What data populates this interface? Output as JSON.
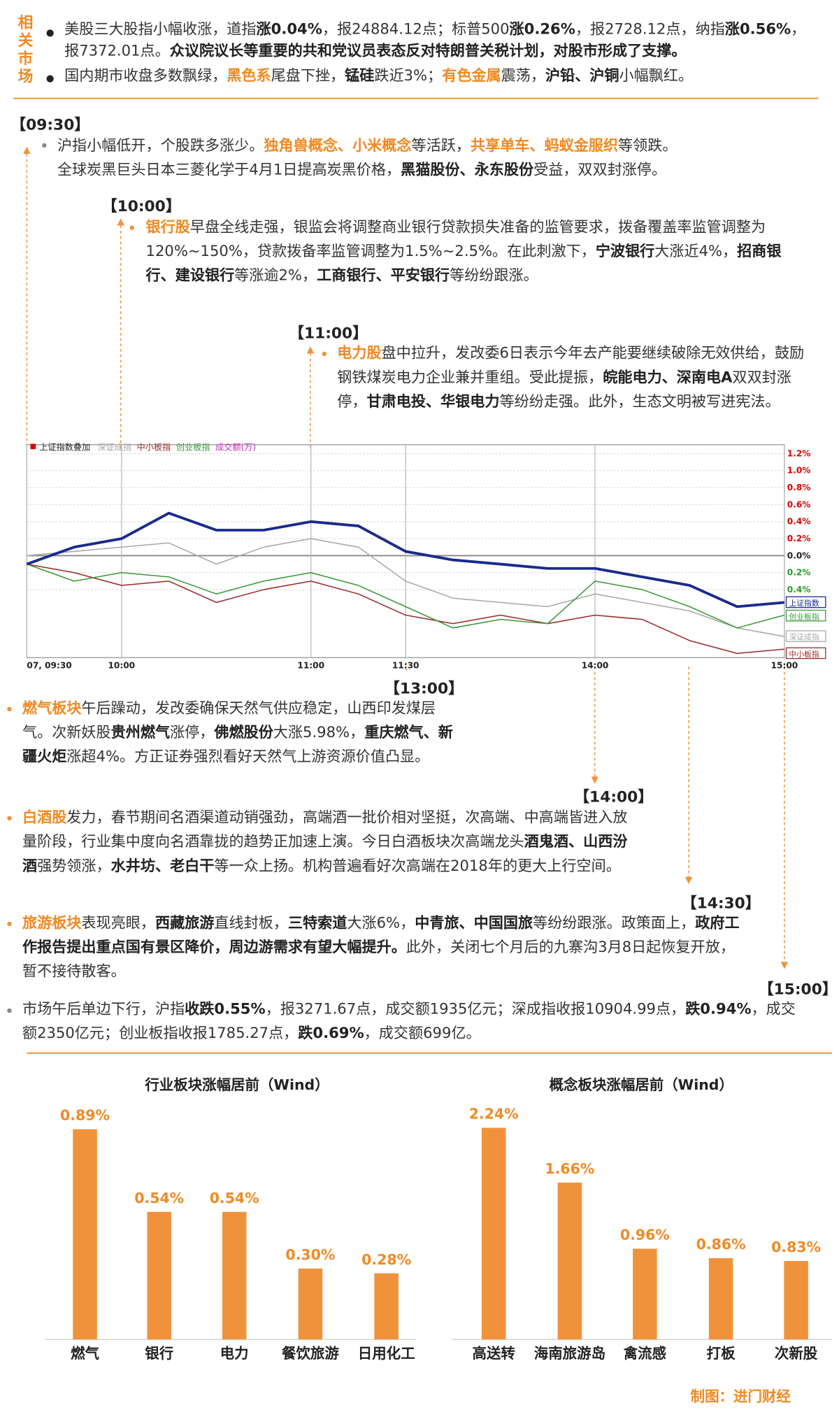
{
  "related_market": {
    "label": "相关市场",
    "items": [
      [
        "美股三大股指小幅收涨，道指",
        "涨0.04%",
        "，报24884.12点；标普500",
        "涨0.26%",
        "，报2728.12点，纳指",
        "涨0.56%",
        "，报7372.01点。",
        "众议院议长等重要的共和党议员表态反对特朗普关税计划，对股市形成了支撑。"
      ],
      [
        "国内期市收盘多数飘绿，",
        "黑色系",
        "尾盘下挫，",
        "锰硅",
        "跌近3%；",
        "有色金属",
        "震荡，",
        "沪铅、沪铜",
        "小幅飘红。"
      ]
    ]
  },
  "timeline": [
    {
      "time": "【09:30】",
      "paragraphs": [
        [
          "沪指小幅低开，个股跌多涨少。",
          "独角兽概念、小米概念",
          "等活跃，",
          "共享单车、蚂蚁金服织",
          "等领跌。"
        ],
        [
          "全球炭黑巨头日本三菱化学于4月1日提高炭黑价格，",
          "黑猫股份、永东股份",
          "受益，双双封涨停。"
        ]
      ]
    },
    {
      "time": "【10:00】",
      "paragraphs": [
        [
          "银行股",
          "早盘全线走强，银监会将调整商业银行贷款损失准备的监管要求，拨备覆盖率监管调整为120%~150%，贷款拨备率监管调整为1.5%~2.5%。在此刺激下，",
          "宁波银行",
          "大涨近4%，",
          "招商银行、建设银行",
          "等涨逾2%，",
          "工商银行、平安银行",
          "等纷纷跟涨。"
        ]
      ]
    },
    {
      "time": "【11:00】",
      "paragraphs": [
        [
          "电力股",
          "盘中拉升，发改委6日表示今年去产能要继续破除无效供给，鼓励钢铁煤炭电力企业兼并重组。受此提振，",
          "皖能电力、深南电A",
          "双双封涨停，",
          "甘肃电投、华银电力",
          "等纷纷走强。此外，生态文明被写进宪法。"
        ]
      ]
    },
    {
      "time": "【13:00】",
      "paragraphs": [
        [
          "燃气板块",
          "午后躁动，发改委确保天然气供应稳定，山西印发煤层气。次新妖股",
          "贵州燃气",
          "涨停，",
          "佛燃股份",
          "大涨5.98%，",
          "重庆燃气、新疆火炬",
          "涨超4%。方正证券强烈看好天然气上游资源价值凸显。"
        ]
      ]
    },
    {
      "time": "【14:00】",
      "paragraphs": [
        [
          "白酒股",
          "发力，春节期间名酒渠道动销强劲，高端酒一批价相对坚挺，次高端、中高端皆进入放量阶段，行业集中度向名酒靠拢的趋势正加速上演。今日白酒板块次高端龙头",
          "酒鬼酒、山西汾酒",
          "强势领涨，",
          "水井坊、老白干",
          "等一众上扬。机构普遍看好次高端在2018年的更大上行空间。"
        ]
      ]
    },
    {
      "time": "【14:30】",
      "paragraphs": [
        [
          "旅游板块",
          "表现亮眼，",
          "西藏旅游",
          "直线封板，",
          "三特索道",
          "大涨6%，",
          "中青旅、中国国旅",
          "等纷纷跟涨。政策面上，",
          "政府工作报告提出重点国有景区降价，周边游需求有望大幅提升。",
          "此外，关闭七个月后的九寨沟3月8日起恢复开放，暂不接待散客。"
        ]
      ]
    },
    {
      "time": "【15:00】",
      "paragraphs": [
        [
          "市场午后单边下行，沪指",
          "收跌0.55%",
          "，报3271.67点，成交额1935亿元；深成指收报10904.99点，",
          "跌0.94%",
          "，成交额2350亿元；创业板指收报1785.27点，",
          "跌0.69%",
          "，成交额699亿。"
        ]
      ]
    }
  ],
  "chart_data": [
    {
      "type": "line",
      "overlay_label": "上证指数叠加",
      "volume_label": "成交额(万)",
      "x": [
        0,
        15,
        30,
        45,
        60,
        75,
        90,
        105,
        120,
        135,
        150,
        165,
        180,
        195,
        210,
        225,
        240
      ],
      "xlim": [
        0,
        240
      ],
      "xticks": [
        {
          "value": 0,
          "label": "07, 09:30"
        },
        {
          "value": 30,
          "label": "10:00"
        },
        {
          "value": 90,
          "label": "11:00"
        },
        {
          "value": 120,
          "label": "11:30"
        },
        {
          "value": 180,
          "label": "14:00"
        },
        {
          "value": 240,
          "label": "15:00"
        }
      ],
      "ylim": [
        -1.2,
        1.2
      ],
      "yticks": [
        {
          "value": 1.2,
          "label": "1.2%"
        },
        {
          "value": 1.0,
          "label": "1.0%"
        },
        {
          "value": 0.8,
          "label": "0.8%"
        },
        {
          "value": 0.6,
          "label": "0.6%"
        },
        {
          "value": 0.4,
          "label": "0.4%"
        },
        {
          "value": 0.2,
          "label": "0.2%"
        },
        {
          "value": 0,
          "label": "0.0%"
        },
        {
          "value": -0.2,
          "label": "0.2%"
        },
        {
          "value": -0.4,
          "label": "0.4%"
        }
      ],
      "grid": true,
      "series": [
        {
          "name": "深证成指",
          "color": "#a8a8a8",
          "values": [
            0.0,
            0.05,
            0.1,
            0.15,
            -0.1,
            0.1,
            0.2,
            0.1,
            -0.3,
            -0.5,
            -0.55,
            -0.6,
            -0.45,
            -0.55,
            -0.65,
            -0.85,
            -0.95
          ]
        },
        {
          "name": "中小板指",
          "color": "#9a2a2a",
          "values": [
            -0.1,
            -0.2,
            -0.35,
            -0.3,
            -0.55,
            -0.4,
            -0.3,
            -0.45,
            -0.7,
            -0.8,
            -0.7,
            -0.8,
            -0.7,
            -0.75,
            -1.0,
            -1.15,
            -1.1
          ]
        },
        {
          "name": "创业板指",
          "color": "#3a9a3a",
          "values": [
            -0.1,
            -0.3,
            -0.2,
            -0.25,
            -0.45,
            -0.3,
            -0.2,
            -0.35,
            -0.6,
            -0.85,
            -0.75,
            -0.8,
            -0.3,
            -0.4,
            -0.6,
            -0.85,
            -0.7
          ]
        },
        {
          "name": "上证指数",
          "color": "#1a2a8c",
          "values": [
            -0.1,
            0.1,
            0.2,
            0.5,
            0.3,
            0.3,
            0.4,
            0.35,
            0.05,
            -0.05,
            -0.1,
            -0.15,
            -0.15,
            -0.25,
            -0.35,
            -0.6,
            -0.55
          ]
        }
      ]
    },
    {
      "type": "bar",
      "title": "行业板块涨幅居前（Wind）",
      "color": "#f0923c",
      "categories": [
        "燃气",
        "银行",
        "电力",
        "餐饮旅游",
        "日用化工"
      ],
      "values": [
        0.89,
        0.54,
        0.54,
        0.3,
        0.28
      ],
      "value_labels": [
        "0.89%",
        "0.54%",
        "0.54%",
        "0.30%",
        "0.28%"
      ],
      "ylim": [
        0,
        1
      ]
    },
    {
      "type": "bar",
      "title": "概念板块涨幅居前（Wind）",
      "color": "#f0923c",
      "categories": [
        "高送转",
        "海南旅游岛",
        "禽流感",
        "打板",
        "次新股"
      ],
      "values": [
        2.24,
        1.66,
        0.96,
        0.86,
        0.83
      ],
      "value_labels": [
        "2.24%",
        "1.66%",
        "0.96%",
        "0.86%",
        "0.83%"
      ],
      "ylim": [
        0,
        2.5
      ]
    }
  ],
  "credit": "制图：进门财经"
}
